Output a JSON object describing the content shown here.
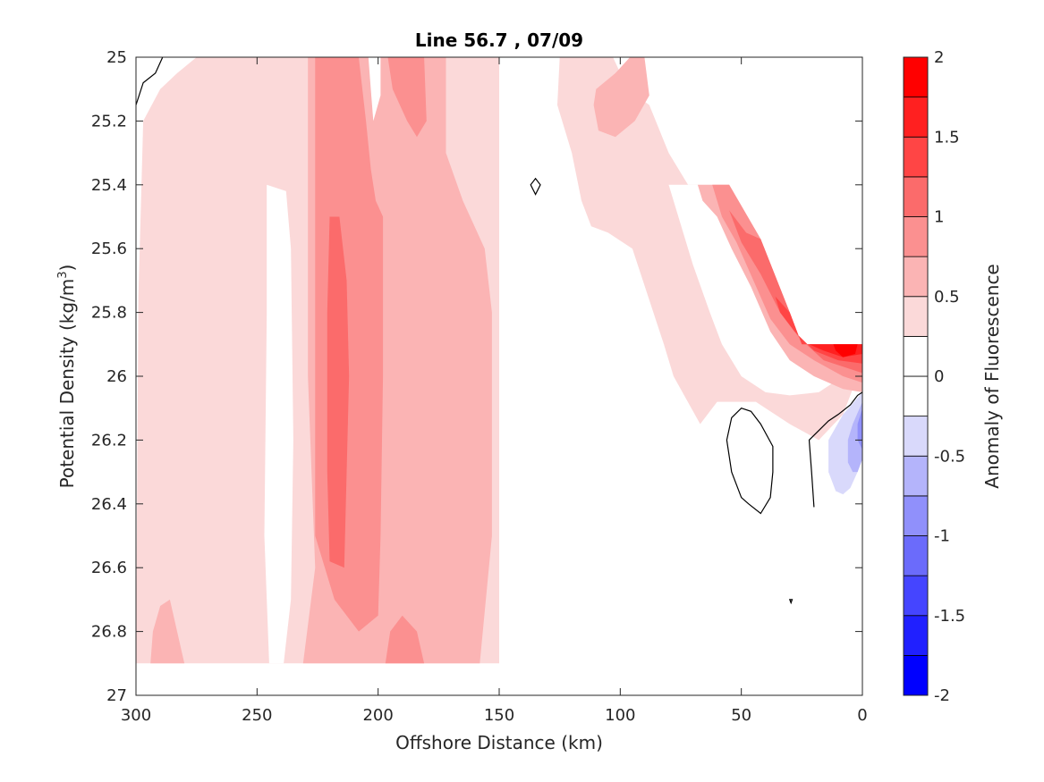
{
  "chart_data": {
    "type": "heatmap",
    "subtype": "filled-contour",
    "title": "Line 56.7 , 07/09",
    "xlabel": "Offshore Distance (km)",
    "ylabel_main": "Potential Density (kg/m",
    "ylabel_sup": "3",
    "ylabel_tail": ")",
    "colorbar_label": "Anomaly of Fluorescence",
    "xlim": [
      300,
      0
    ],
    "ylim": [
      25,
      27
    ],
    "y_reversed": true,
    "x_reversed": true,
    "x_ticks": [
      300,
      250,
      200,
      150,
      100,
      50,
      0
    ],
    "x_tick_labels": [
      "300",
      "250",
      "200",
      "150",
      "100",
      "50",
      "0"
    ],
    "y_ticks": [
      25,
      25.2,
      25.4,
      25.6,
      25.8,
      26,
      26.2,
      26.4,
      26.6,
      26.8,
      27
    ],
    "y_tick_labels": [
      "25",
      "25.2",
      "25.4",
      "25.6",
      "25.8",
      "26",
      "26.2",
      "26.4",
      "26.6",
      "26.8",
      "27"
    ],
    "colorbar": {
      "range": [
        -2,
        2
      ],
      "levels": [
        -2,
        -1.75,
        -1.5,
        -1.25,
        -1,
        -0.75,
        -0.5,
        -0.25,
        0,
        0.25,
        0.5,
        0.75,
        1,
        1.25,
        1.5,
        1.75,
        2
      ],
      "ticks": [
        2,
        1.5,
        1,
        0.5,
        0,
        -0.5,
        -1,
        -1.5,
        -2
      ],
      "tick_labels": [
        "2",
        "1.5",
        "1",
        "0.5",
        "0",
        "-0.5",
        "-1",
        "-1.5",
        "-2"
      ],
      "colors_bottom_to_top": [
        "#0000ff",
        "#2020ff",
        "#4545ff",
        "#6b6bfb",
        "#9090fb",
        "#b4b4fb",
        "#d9d9fb",
        "#ffffff",
        "#ffffff",
        "#fbd9d9",
        "#fbb4b4",
        "#fb9090",
        "#fb6b6b",
        "#ff4545",
        "#ff2020",
        "#ff0000"
      ]
    },
    "regions": [
      {
        "level": 0.25,
        "color": "#fbd9d9",
        "points": [
          [
            299,
            25.75
          ],
          [
            297,
            25.2
          ],
          [
            290,
            25.1
          ],
          [
            283,
            25.05
          ],
          [
            275,
            25
          ],
          [
            150,
            25
          ],
          [
            150,
            26.9
          ],
          [
            300,
            26.9
          ]
        ]
      },
      {
        "level": 0,
        "color": "#ffffff",
        "points": [
          [
            246,
            25.4
          ],
          [
            238,
            25.42
          ],
          [
            236,
            25.6
          ],
          [
            235,
            26.2
          ],
          [
            236,
            26.7
          ],
          [
            239,
            26.9
          ],
          [
            245,
            26.9
          ],
          [
            247,
            26.5
          ],
          [
            246,
            25.8
          ]
        ]
      },
      {
        "level": 0.5,
        "color": "#fbb4b4",
        "points": [
          [
            229,
            25
          ],
          [
            172,
            25
          ],
          [
            172,
            25.3
          ],
          [
            165,
            25.45
          ],
          [
            156,
            25.6
          ],
          [
            153,
            25.8
          ],
          [
            153,
            26.5
          ],
          [
            158,
            26.9
          ],
          [
            231,
            26.9
          ],
          [
            226,
            26.6
          ],
          [
            229,
            26
          ]
        ]
      },
      {
        "level": 0.75,
        "color": "#fb9090",
        "points": [
          [
            226,
            25
          ],
          [
            208,
            25
          ],
          [
            205,
            25.2
          ],
          [
            203,
            25.35
          ],
          [
            201,
            25.45
          ],
          [
            198,
            25.5
          ],
          [
            198,
            26
          ],
          [
            199,
            26.5
          ],
          [
            200,
            26.75
          ],
          [
            208,
            26.8
          ],
          [
            218,
            26.7
          ],
          [
            226,
            26.5
          ],
          [
            226,
            26
          ]
        ]
      },
      {
        "level": 0.75,
        "color": "#fb9090",
        "points": [
          [
            196,
            25
          ],
          [
            181,
            25
          ],
          [
            180,
            25.2
          ],
          [
            184,
            25.25
          ],
          [
            188,
            25.2
          ],
          [
            194,
            25.1
          ]
        ]
      },
      {
        "level": 0.75,
        "color": "#fb9090",
        "points": [
          [
            197,
            26.9
          ],
          [
            181,
            26.9
          ],
          [
            184,
            26.8
          ],
          [
            190,
            26.75
          ],
          [
            195,
            26.8
          ]
        ]
      },
      {
        "level": 0.75,
        "color": "#fbb4b4",
        "points": [
          [
            294,
            26.9
          ],
          [
            280,
            26.9
          ],
          [
            283,
            26.8
          ],
          [
            286,
            26.7
          ],
          [
            290,
            26.72
          ],
          [
            293,
            26.8
          ]
        ]
      },
      {
        "level": 1.0,
        "color": "#fb6b6b",
        "points": [
          [
            220,
            25.5
          ],
          [
            216,
            25.5
          ],
          [
            213,
            25.7
          ],
          [
            212,
            26
          ],
          [
            213,
            26.3
          ],
          [
            214,
            26.6
          ],
          [
            220,
            26.58
          ],
          [
            221,
            26.3
          ],
          [
            221,
            25.8
          ]
        ]
      },
      {
        "level": 1.0,
        "color": "#ffffff",
        "points": [
          [
            204,
            25
          ],
          [
            199,
            25
          ],
          [
            199,
            25.12
          ],
          [
            202,
            25.2
          ],
          [
            203,
            25.1
          ]
        ]
      },
      {
        "level": 0.25,
        "color": "#fbd9d9",
        "points": [
          [
            125,
            25
          ],
          [
            126,
            25.15
          ],
          [
            120,
            25.3
          ],
          [
            116,
            25.45
          ],
          [
            112,
            25.53
          ],
          [
            105,
            25.55
          ],
          [
            95,
            25.6
          ],
          [
            82,
            25.9
          ],
          [
            78,
            26.0
          ],
          [
            67,
            26.15
          ],
          [
            60,
            26.08
          ],
          [
            44,
            26.08
          ],
          [
            30,
            26.15
          ],
          [
            18,
            26.2
          ],
          [
            8,
            26.12
          ],
          [
            3,
            26.02
          ],
          [
            0,
            25.95
          ],
          [
            0,
            25.9
          ],
          [
            25,
            25.9
          ],
          [
            30,
            25.8
          ],
          [
            42,
            25.57
          ],
          [
            55,
            25.4
          ],
          [
            72,
            25.4
          ],
          [
            80,
            25.3
          ],
          [
            88,
            25.15
          ],
          [
            97,
            25.1
          ],
          [
            103,
            25
          ]
        ]
      },
      {
        "level": 0.25,
        "color": "#ffffff",
        "points": [
          [
            0,
            25.9
          ],
          [
            0,
            25.98
          ],
          [
            8,
            26
          ],
          [
            18,
            26.05
          ],
          [
            30,
            26.06
          ],
          [
            40,
            26.05
          ],
          [
            50,
            26.0
          ],
          [
            58,
            25.9
          ],
          [
            63,
            25.8
          ],
          [
            70,
            25.65
          ],
          [
            76,
            25.5
          ],
          [
            80,
            25.4
          ],
          [
            55,
            25.4
          ],
          [
            42,
            25.57
          ],
          [
            30,
            25.8
          ],
          [
            25,
            25.9
          ]
        ]
      },
      {
        "level": 0.5,
        "color": "#fbb4b4",
        "points": [
          [
            110,
            25.1
          ],
          [
            102,
            25.05
          ],
          [
            96,
            25
          ],
          [
            90,
            25
          ],
          [
            88,
            25.12
          ],
          [
            94,
            25.2
          ],
          [
            102,
            25.25
          ],
          [
            109,
            25.23
          ],
          [
            111,
            25.15
          ]
        ]
      },
      {
        "level": 0.5,
        "color": "#fbb4b4",
        "points": [
          [
            68,
            25.4
          ],
          [
            55,
            25.4
          ],
          [
            42,
            25.57
          ],
          [
            30,
            25.8
          ],
          [
            25,
            25.9
          ],
          [
            0,
            25.9
          ],
          [
            0,
            26.05
          ],
          [
            8,
            26.04
          ],
          [
            20,
            26.0
          ],
          [
            30,
            25.95
          ],
          [
            38,
            25.86
          ],
          [
            46,
            25.72
          ],
          [
            54,
            25.6
          ],
          [
            60,
            25.5
          ],
          [
            66,
            25.45
          ]
        ]
      },
      {
        "level": 0.75,
        "color": "#fb9090",
        "points": [
          [
            62,
            25.4
          ],
          [
            55,
            25.4
          ],
          [
            42,
            25.57
          ],
          [
            30,
            25.8
          ],
          [
            25,
            25.9
          ],
          [
            0,
            25.9
          ],
          [
            0,
            26.02
          ],
          [
            8,
            26.0
          ],
          [
            20,
            25.95
          ],
          [
            30,
            25.9
          ],
          [
            38,
            25.82
          ],
          [
            45,
            25.7
          ],
          [
            52,
            25.58
          ],
          [
            58,
            25.5
          ]
        ]
      },
      {
        "level": 1.0,
        "color": "#fb6b6b",
        "points": [
          [
            55,
            25.48
          ],
          [
            48,
            25.55
          ],
          [
            42,
            25.57
          ],
          [
            30,
            25.8
          ],
          [
            25,
            25.9
          ],
          [
            0,
            25.9
          ],
          [
            0,
            25.99
          ],
          [
            8,
            25.97
          ],
          [
            16,
            25.95
          ],
          [
            26,
            25.88
          ],
          [
            34,
            25.8
          ],
          [
            42,
            25.68
          ],
          [
            50,
            25.58
          ]
        ]
      },
      {
        "level": 1.25,
        "color": "#ff4545",
        "points": [
          [
            36,
            25.75
          ],
          [
            30,
            25.8
          ],
          [
            25,
            25.9
          ],
          [
            0,
            25.9
          ],
          [
            0,
            25.96
          ],
          [
            10,
            25.95
          ],
          [
            20,
            25.92
          ],
          [
            28,
            25.86
          ],
          [
            34,
            25.8
          ]
        ]
      },
      {
        "level": 1.5,
        "color": "#ff2020",
        "points": [
          [
            22,
            25.9
          ],
          [
            0,
            25.9
          ],
          [
            0,
            25.93
          ],
          [
            8,
            25.94
          ],
          [
            16,
            25.92
          ]
        ]
      },
      {
        "level": 1.75,
        "color": "#ff0000",
        "points": [
          [
            12,
            25.9
          ],
          [
            6,
            25.9
          ],
          [
            2,
            25.9
          ],
          [
            3,
            25.93
          ],
          [
            8,
            25.94
          ],
          [
            11,
            25.92
          ]
        ]
      },
      {
        "level": -0.25,
        "color": "#d9d9fb",
        "points": [
          [
            0,
            26.05
          ],
          [
            8,
            26.12
          ],
          [
            14,
            26.2
          ],
          [
            14,
            26.3
          ],
          [
            11,
            26.36
          ],
          [
            8,
            26.37
          ],
          [
            5,
            26.35
          ],
          [
            2,
            26.3
          ],
          [
            0,
            26.25
          ]
        ]
      },
      {
        "level": -0.5,
        "color": "#b4b4fb",
        "points": [
          [
            0,
            26.08
          ],
          [
            4,
            26.15
          ],
          [
            6,
            26.2
          ],
          [
            6,
            26.27
          ],
          [
            4,
            26.3
          ],
          [
            2,
            26.3
          ],
          [
            0,
            26.26
          ]
        ]
      },
      {
        "level": -0.75,
        "color": "#9090fb",
        "points": [
          [
            0,
            26.1
          ],
          [
            2,
            26.15
          ],
          [
            2,
            26.2
          ],
          [
            0,
            26.23
          ]
        ]
      }
    ],
    "zero_contours": [
      {
        "closed": false,
        "points": [
          [
            300,
            25.15
          ],
          [
            297,
            25.08
          ],
          [
            292,
            25.05
          ],
          [
            289,
            25
          ]
        ]
      },
      {
        "closed": true,
        "points": [
          [
            135,
            25.38
          ],
          [
            133,
            25.4
          ],
          [
            135,
            25.43
          ],
          [
            137,
            25.4
          ]
        ]
      },
      {
        "closed": true,
        "points": [
          [
            50,
            26.1
          ],
          [
            46,
            26.11
          ],
          [
            42,
            26.15
          ],
          [
            37,
            26.22
          ],
          [
            37,
            26.3
          ],
          [
            38,
            26.38
          ],
          [
            42,
            26.43
          ],
          [
            47,
            26.4
          ],
          [
            50,
            26.38
          ],
          [
            54,
            26.3
          ],
          [
            56,
            26.2
          ],
          [
            54,
            26.13
          ]
        ]
      },
      {
        "closed": false,
        "points": [
          [
            20,
            26.41
          ],
          [
            21,
            26.3
          ],
          [
            22,
            26.2
          ],
          [
            18,
            26.17
          ],
          [
            14,
            26.14
          ],
          [
            10,
            26.12
          ],
          [
            5,
            26.09
          ],
          [
            2,
            26.06
          ],
          [
            0,
            26.05
          ]
        ]
      },
      {
        "closed": true,
        "points": [
          [
            30,
            26.7
          ],
          [
            29.5,
            26.71
          ],
          [
            29,
            26.7
          ]
        ]
      }
    ]
  }
}
